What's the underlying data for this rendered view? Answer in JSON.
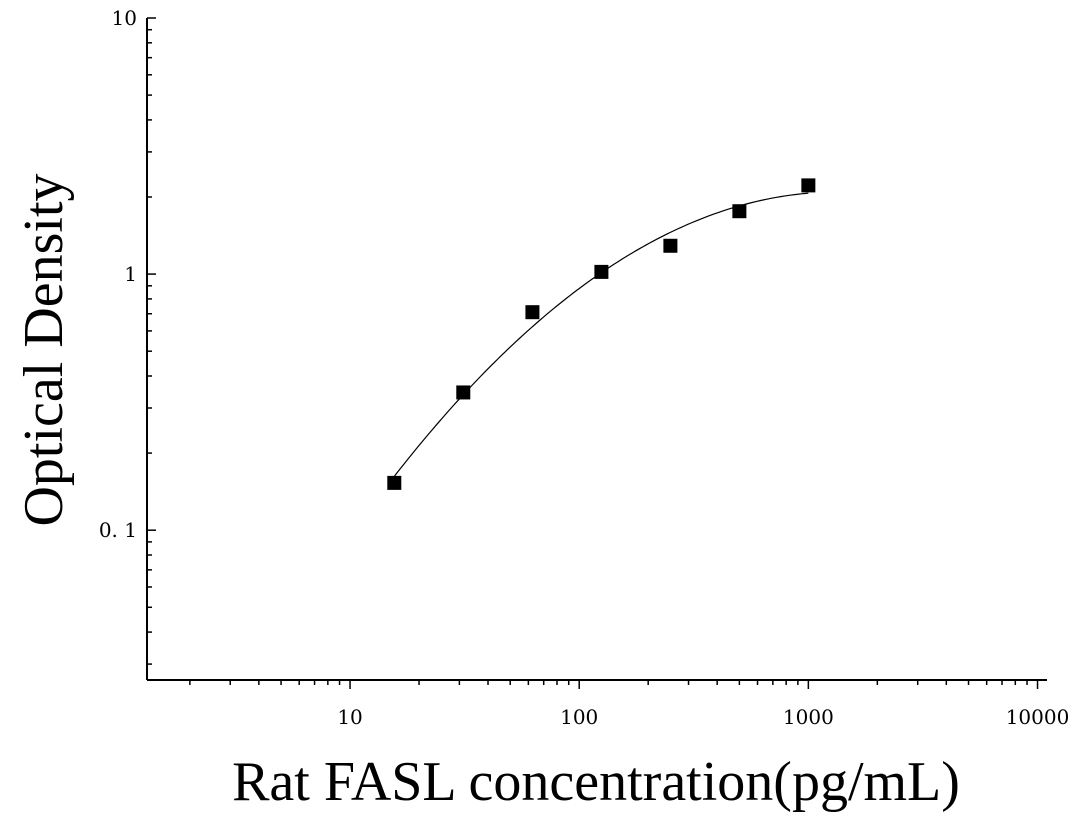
{
  "chart_data": {
    "type": "scatter",
    "xlabel": "Rat FASL concentration(pg/mL)",
    "ylabel": "Optical Density",
    "xscale": "log",
    "yscale": "log",
    "xlim": [
      1.3,
      11000
    ],
    "ylim": [
      0.026,
      10
    ],
    "x_ticks": [
      {
        "value": 10,
        "label": "10"
      },
      {
        "value": 100,
        "label": "100"
      },
      {
        "value": 1000,
        "label": "1000"
      },
      {
        "value": 10000,
        "label": "10000"
      }
    ],
    "y_ticks": [
      {
        "value": 0.1,
        "label": "0. 1"
      },
      {
        "value": 1,
        "label": "1"
      },
      {
        "value": 10,
        "label": "10"
      }
    ],
    "series": [
      {
        "marker": "square",
        "color": "#000000",
        "points": [
          {
            "x": 15.6,
            "y": 0.153
          },
          {
            "x": 31.2,
            "y": 0.345
          },
          {
            "x": 62.5,
            "y": 0.71
          },
          {
            "x": 125,
            "y": 1.02
          },
          {
            "x": 250,
            "y": 1.29
          },
          {
            "x": 500,
            "y": 1.76
          },
          {
            "x": 1000,
            "y": 2.22
          }
        ]
      }
    ],
    "fit_curve": {
      "color": "#000000",
      "x_range": [
        15.6,
        1000
      ]
    },
    "grid": false,
    "legend": "none"
  }
}
